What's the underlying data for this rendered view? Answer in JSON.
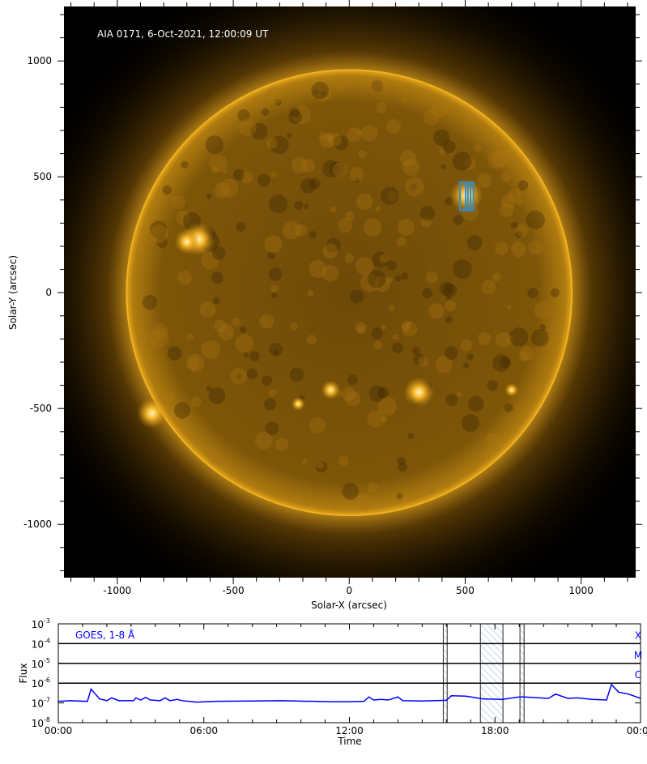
{
  "chart_data": [
    {
      "type": "image",
      "title": "AIA 0171, 6-Oct-2021, 12:00:09 UT",
      "xlabel": "Solar-X (arcsec)",
      "ylabel": "Solar-Y (arcsec)",
      "xlim": [
        -1230,
        1235
      ],
      "ylim": [
        -1230,
        1235
      ],
      "xticks": [
        -1000,
        -500,
        0,
        500,
        1000
      ],
      "yticks": [
        -1000,
        -500,
        0,
        500,
        1000
      ],
      "xtick_labels": [
        "-1000",
        "-500",
        "0",
        "500",
        "1000"
      ],
      "ytick_labels": [
        "-1000",
        "-500",
        "0",
        "500",
        "1000"
      ],
      "solar_radius_arcsec": 963,
      "colors": {
        "disk": "#c98a10",
        "limb": "#f0b020",
        "background": "#000000",
        "box": "#2b8fd8"
      },
      "highlight_box": {
        "x": [
          460,
          550
        ],
        "y": [
          355,
          500
        ]
      }
    },
    {
      "type": "line",
      "legend": "GOES, 1-8 Å",
      "xlabel": "Time",
      "ylabel": "Flux",
      "yscale": "log",
      "ylim": [
        1e-08,
        0.001
      ],
      "xlim_hours": [
        0,
        24
      ],
      "ytick_labels": [
        {
          "base": "10",
          "exp": "-3"
        },
        {
          "base": "10",
          "exp": "-4"
        },
        {
          "base": "10",
          "exp": "-5"
        },
        {
          "base": "10",
          "exp": "-6"
        },
        {
          "base": "10",
          "exp": "-7"
        },
        {
          "base": "10",
          "exp": "-8"
        }
      ],
      "xtick_labels": [
        "00:00",
        "06:00",
        "12:00",
        "18:00",
        "00:00"
      ],
      "flare_classes": [
        {
          "label": "X",
          "flux": 0.0001
        },
        {
          "label": "M",
          "flux": 1e-05
        },
        {
          "label": "C",
          "flux": 1e-06
        }
      ],
      "shaded_intervals_hours": [
        [
          15.87,
          16.03
        ],
        [
          17.4,
          18.33
        ],
        [
          19.03,
          19.2
        ]
      ],
      "color": "#0000ff",
      "series": [
        {
          "x": [
            0,
            0.5,
            1.2,
            1.35,
            1.7,
            2.0,
            2.2,
            2.5,
            3.1,
            3.2,
            3.4,
            3.6,
            3.8,
            4.2,
            4.4,
            4.6,
            4.9,
            5.1,
            5.7,
            6.5,
            8,
            9.2,
            10.5,
            11.3,
            12,
            12.6,
            12.8,
            13.0,
            13.3,
            13.6,
            14.0,
            14.2,
            15.0,
            16.0,
            16.2,
            16.8,
            17.5,
            18.3,
            19.0,
            19.2,
            20.2,
            20.5,
            21.0,
            21.4,
            22.0,
            22.6,
            22.8,
            23.1,
            23.5,
            24
          ],
          "y": [
            1.2e-07,
            1.3e-07,
            1.2e-07,
            5e-07,
            1.6e-07,
            1.3e-07,
            1.8e-07,
            1.3e-07,
            1.3e-07,
            1.8e-07,
            1.4e-07,
            1.9e-07,
            1.4e-07,
            1.3e-07,
            1.8e-07,
            1.3e-07,
            1.5e-07,
            1.3e-07,
            1.1e-07,
            1.2e-07,
            1.25e-07,
            1.3e-07,
            1.2e-07,
            1.15e-07,
            1.15e-07,
            1.2e-07,
            2e-07,
            1.4e-07,
            1.5e-07,
            1.4e-07,
            2e-07,
            1.3e-07,
            1.25e-07,
            1.35e-07,
            2.3e-07,
            2.2e-07,
            1.6e-07,
            1.5e-07,
            2e-07,
            2e-07,
            1.7e-07,
            2.8e-07,
            1.7e-07,
            1.8e-07,
            1.5e-07,
            1.4e-07,
            8.5e-07,
            3.5e-07,
            2.8e-07,
            1.7e-07
          ]
        }
      ]
    }
  ]
}
